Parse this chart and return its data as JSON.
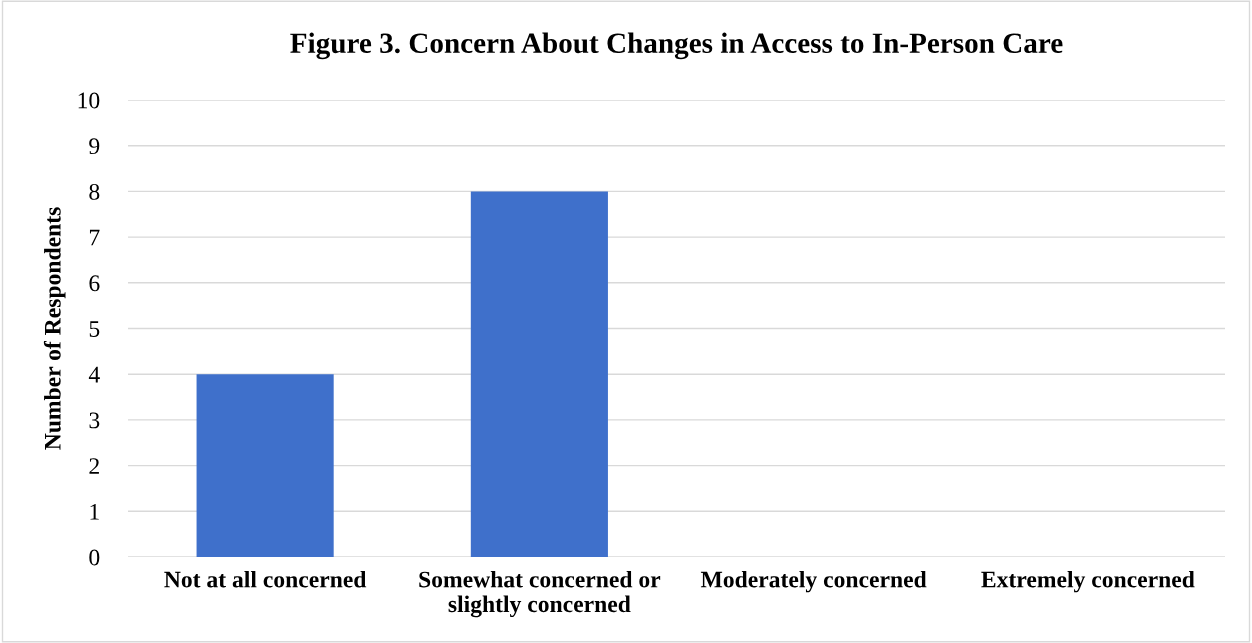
{
  "chart_data": {
    "type": "bar",
    "title": "Figure 3. Concern About Changes in Access to In-Person Care",
    "ylabel": "Number of Respondents",
    "categories": [
      "Not at all concerned",
      "Somewhat concerned or\nslightly concerned",
      "Moderately concerned",
      "Extremely concerned"
    ],
    "values": [
      4,
      8,
      0,
      0
    ],
    "color": "#3f70cb",
    "ylim": [
      0,
      10
    ],
    "yticks": [
      0,
      1,
      2,
      3,
      4,
      5,
      6,
      7,
      8,
      9,
      10
    ],
    "grid": "y",
    "legend": false
  }
}
